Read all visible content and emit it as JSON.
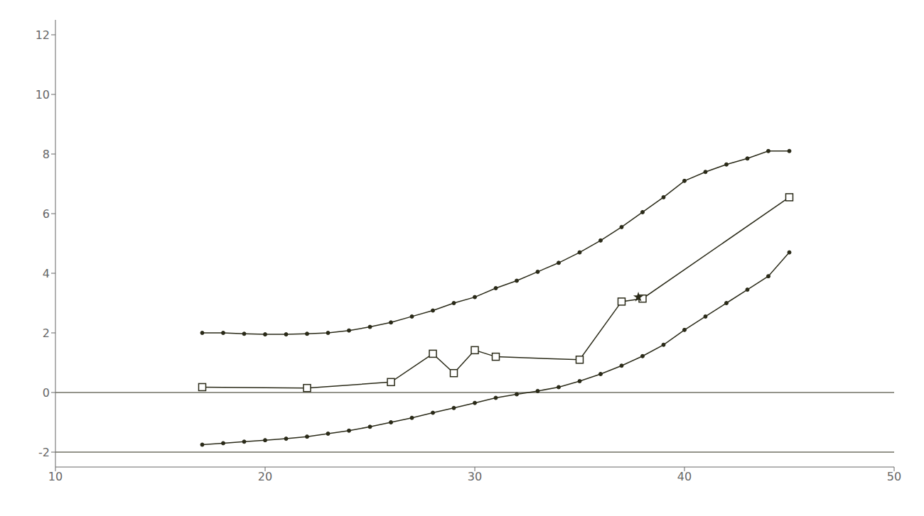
{
  "chart_data": {
    "type": "line",
    "color": "#2a2a18",
    "grid": false,
    "xlim": [
      10,
      50
    ],
    "xticks": [
      10,
      20,
      30,
      40,
      50
    ],
    "ylim": [
      -2.5,
      12.5
    ],
    "yticks": [
      -2,
      0,
      2,
      4,
      6,
      8,
      10,
      12
    ],
    "hlines": [
      0,
      -2
    ],
    "series": [
      {
        "type": "line",
        "color": "#2a2a18",
        "marker": "dot",
        "x": [
          17,
          18,
          19,
          20,
          21,
          22,
          23,
          24,
          25,
          26,
          27,
          28,
          29,
          30,
          31,
          32,
          33,
          34,
          35,
          36,
          37,
          38,
          39,
          40,
          41,
          42,
          43,
          44,
          45
        ],
        "values": [
          2.0,
          2.0,
          1.97,
          1.95,
          1.95,
          1.97,
          2.0,
          2.08,
          2.2,
          2.35,
          2.55,
          2.75,
          3.0,
          3.2,
          3.5,
          3.75,
          4.05,
          4.35,
          4.7,
          5.1,
          5.55,
          6.05,
          6.55,
          7.1,
          7.4,
          7.65,
          7.85,
          8.1,
          8.1
        ]
      },
      {
        "type": "line",
        "color": "#2a2a18",
        "marker": "dot",
        "x": [
          17,
          18,
          19,
          20,
          21,
          22,
          23,
          24,
          25,
          26,
          27,
          28,
          29,
          30,
          31,
          32,
          33,
          34,
          35,
          36,
          37,
          38,
          39,
          40,
          41,
          42,
          43,
          44,
          45
        ],
        "values": [
          -1.75,
          -1.7,
          -1.65,
          -1.6,
          -1.55,
          -1.48,
          -1.38,
          -1.28,
          -1.15,
          -1.0,
          -0.85,
          -0.68,
          -0.52,
          -0.35,
          -0.18,
          -0.06,
          0.05,
          0.18,
          0.38,
          0.62,
          0.9,
          1.22,
          1.6,
          2.1,
          2.55,
          3.0,
          3.45,
          3.9,
          4.7
        ]
      },
      {
        "type": "line",
        "color": "#2a2a18",
        "marker": "square",
        "x": [
          17,
          22,
          26,
          28,
          29,
          30,
          31,
          35,
          37,
          38,
          45
        ],
        "values": [
          0.18,
          0.15,
          0.35,
          1.3,
          0.65,
          1.42,
          1.2,
          1.1,
          3.05,
          3.15,
          6.55
        ]
      },
      {
        "type": "scatter",
        "color": "#2a2a18",
        "marker": "star",
        "x": [
          37.8
        ],
        "values": [
          3.2
        ]
      }
    ]
  }
}
